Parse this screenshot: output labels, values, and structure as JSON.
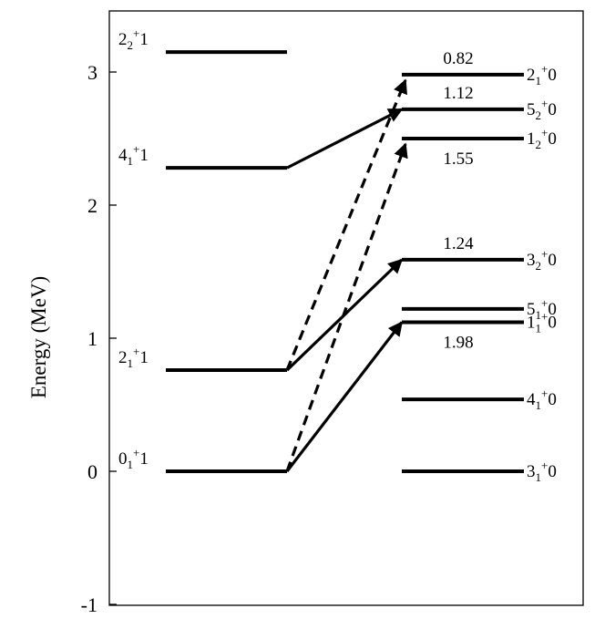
{
  "chart_data": {
    "type": "level-scheme",
    "ylabel": "Energy (MeV)",
    "ylim": [
      -1,
      3.3
    ],
    "yticks": [
      {
        "value": 3,
        "label": "3"
      },
      {
        "value": 2,
        "label": "2"
      },
      {
        "value": 1,
        "label": "1"
      },
      {
        "value": 0,
        "label": "0"
      },
      {
        "value": -1,
        "label": "-1"
      }
    ],
    "columns": [
      "left",
      "right"
    ],
    "levels": [
      {
        "id": "L2_2",
        "column": "left",
        "energy": 3.15,
        "J": "2",
        "idx": "2",
        "T": "1"
      },
      {
        "id": "L4_1",
        "column": "left",
        "energy": 2.28,
        "J": "4",
        "idx": "1",
        "T": "1"
      },
      {
        "id": "L2_1",
        "column": "left",
        "energy": 0.76,
        "J": "2",
        "idx": "1",
        "T": "1"
      },
      {
        "id": "L0_1",
        "column": "left",
        "energy": 0.0,
        "J": "0",
        "idx": "1",
        "T": "1"
      },
      {
        "id": "R2_1",
        "column": "right",
        "energy": 2.98,
        "J": "2",
        "idx": "1",
        "T": "0"
      },
      {
        "id": "R5_2",
        "column": "right",
        "energy": 2.72,
        "J": "5",
        "idx": "2",
        "T": "0"
      },
      {
        "id": "R1_2",
        "column": "right",
        "energy": 2.5,
        "J": "1",
        "idx": "2",
        "T": "0"
      },
      {
        "id": "R3_2",
        "column": "right",
        "energy": 1.59,
        "J": "3",
        "idx": "2",
        "T": "0"
      },
      {
        "id": "R5_1",
        "column": "right",
        "energy": 1.22,
        "J": "5",
        "idx": "1",
        "T": "0"
      },
      {
        "id": "R1_1",
        "column": "right",
        "energy": 1.12,
        "J": "1",
        "idx": "1",
        "T": "0"
      },
      {
        "id": "R4_1",
        "column": "right",
        "energy": 0.54,
        "J": "4",
        "idx": "1",
        "T": "0"
      },
      {
        "id": "R3_1",
        "column": "right",
        "energy": 0.0,
        "J": "3",
        "idx": "1",
        "T": "0"
      }
    ],
    "transitions": [
      {
        "from": "L4_1",
        "to": "R5_2",
        "style": "solid"
      },
      {
        "from": "L2_1",
        "to": "R3_2",
        "style": "solid"
      },
      {
        "from": "L0_1",
        "to": "R1_1",
        "style": "solid"
      },
      {
        "from": "L2_1",
        "to": "R2_1",
        "style": "dashed"
      },
      {
        "from": "L0_1",
        "to": "R1_2",
        "style": "dashed"
      }
    ],
    "values": [
      {
        "text": "0.82",
        "near": "R2_1",
        "place": "above"
      },
      {
        "text": "1.12",
        "near": "R5_2",
        "place": "above"
      },
      {
        "text": "1.55",
        "near": "R1_2",
        "place": "below"
      },
      {
        "text": "1.24",
        "near": "R3_2",
        "place": "above"
      },
      {
        "text": "1.98",
        "near": "R1_1",
        "place": "below"
      }
    ]
  }
}
